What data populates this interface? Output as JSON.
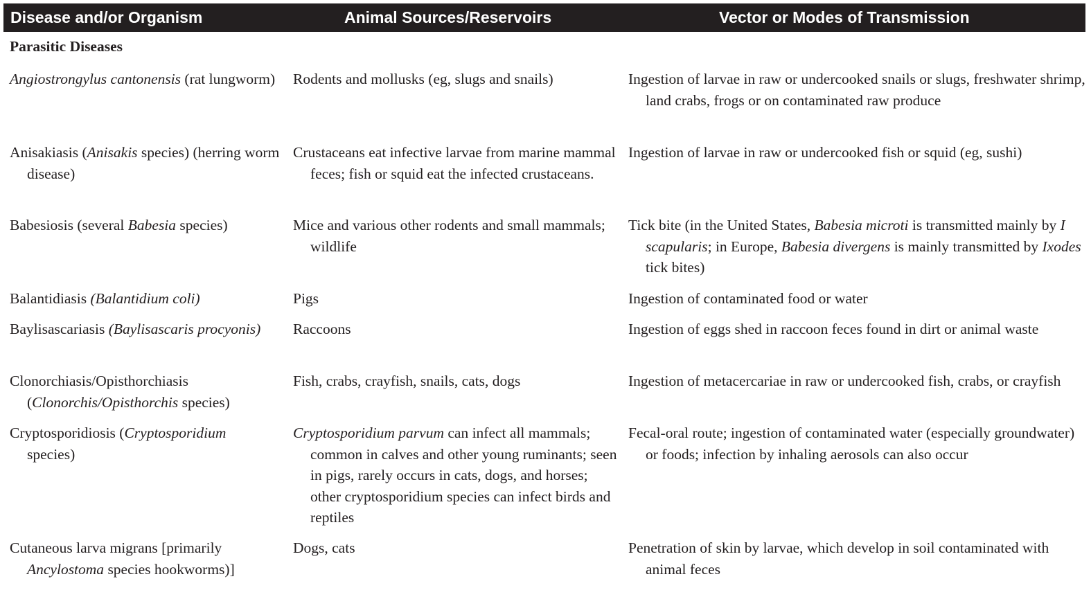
{
  "header": {
    "col1": "Disease and/or Organism",
    "col2": "Animal Sources/Reservoirs",
    "col3": "Vector or Modes of Transmission"
  },
  "section_title": "Parasitic Diseases",
  "rows": [
    {
      "disease_a": "Angiostrongylus cantonensis",
      "disease_b": " (rat lungworm)",
      "source": "Rodents and mollusks (eg, slugs and snails)",
      "transmission": "Ingestion of larvae in raw or undercooked snails or slugs, freshwater shrimp, land crabs, frogs or on contaminated raw produce"
    },
    {
      "disease_a": "Anisakiasis (",
      "disease_b": "Anisakis",
      "disease_c": " species) (herring worm disease)",
      "source": "Crustaceans eat infective larvae from marine mammal feces; fish or squid eat the infected crustaceans.",
      "transmission": "Ingestion of larvae in raw or undercooked fish or squid (eg, sushi)"
    },
    {
      "disease_a": "Babesiosis (several ",
      "disease_b": "Babesia",
      "disease_c": " species)",
      "source": "Mice and various other rodents and small mammals; wildlife",
      "transmission_a": "Tick bite (in the United States, ",
      "transmission_b": "Babesia microti",
      "transmission_c": " is transmitted mainly by ",
      "transmission_d": "I scapularis",
      "transmission_e": "; in Europe, ",
      "transmission_f": "Babesia divergens",
      "transmission_g": " is mainly transmitted by ",
      "transmission_h": "Ixodes",
      "transmission_i": " tick bites)"
    },
    {
      "disease_a": "Balantidiasis ",
      "disease_b": "(Balantidium coli)",
      "source": "Pigs",
      "transmission": "Ingestion of contaminated food or water"
    },
    {
      "disease_a": "Baylisascariasis ",
      "disease_b": "(Baylisascaris procyonis)",
      "source": "Raccoons",
      "transmission": "Ingestion of eggs shed in raccoon feces found in dirt or animal waste"
    },
    {
      "disease_a": "Clonorchiasis/Opisthorchiasis (",
      "disease_b": "Clonorchis/Opisthorchis",
      "disease_c": " species)",
      "source": "Fish, crabs, crayfish, snails, cats, dogs",
      "transmission": "Ingestion of metacercariae in raw or undercooked fish, crabs, or crayfish"
    },
    {
      "disease_a": "Cryptosporidiosis (",
      "disease_b": "Cryptosporidium",
      "disease_c": " species)",
      "source_a": "Cryptosporidium parvum",
      "source_b": " can infect all mammals; common in calves and other young ruminants; seen in pigs, rarely occurs in cats, dogs, and horses; other cryptosporidium species can infect birds and reptiles",
      "transmission": "Fecal-oral route; ingestion of contaminated water (especially groundwater) or foods; infection by inhaling aerosols can also occur"
    },
    {
      "disease_a": "Cutaneous larva migrans [primarily ",
      "disease_b": "Ancylostoma",
      "disease_c": " species hookworms)]",
      "source": "Dogs, cats",
      "transmission": "Penetration of skin by larvae, which develop in soil contaminated with animal feces"
    }
  ]
}
